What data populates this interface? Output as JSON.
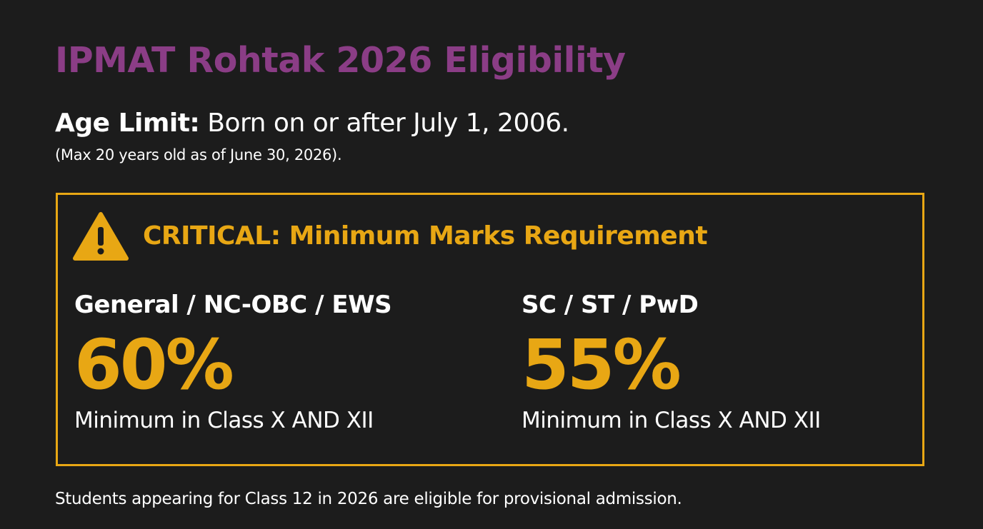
{
  "title": "IPMAT Rohtak 2026 Eligibility",
  "age": {
    "label": "Age Limit:",
    "text": " Born on or after July 1, 2006.",
    "note": "(Max 20 years old as of June 30, 2026)."
  },
  "critical": {
    "icon": "warning-icon",
    "heading": "CRITICAL: Minimum Marks Requirement",
    "accent_color": "#e8a714",
    "categories": [
      {
        "label": "General / NC-OBC / EWS",
        "percent": "60%",
        "note": "Minimum in Class X AND XII"
      },
      {
        "label": "SC / ST / PwD",
        "percent": "55%",
        "note": "Minimum in Class X AND XII"
      }
    ]
  },
  "footer": "Students appearing for Class 12 in 2026 are eligible for provisional admission.",
  "colors": {
    "background": "#1c1c1c",
    "title": "#8b3d86",
    "accent": "#e8a714",
    "text": "#ffffff"
  }
}
